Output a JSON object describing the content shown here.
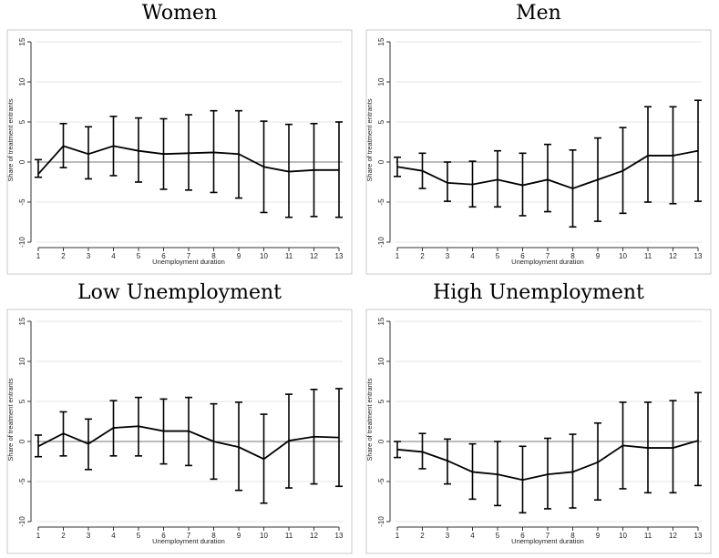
{
  "chart_data": [
    {
      "type": "line",
      "title": "Women",
      "xlabel": "Unemployment duration",
      "ylabel": "Share of treatment entrants",
      "ylim": [
        -10,
        15
      ],
      "yticks": [
        -10,
        -5,
        0,
        5,
        10,
        15
      ],
      "xticks": [
        1,
        2,
        3,
        4,
        5,
        6,
        7,
        8,
        9,
        10,
        11,
        12,
        13
      ],
      "grid": true,
      "x": [
        1,
        2,
        3,
        4,
        5,
        6,
        7,
        8,
        9,
        10,
        11,
        12,
        13
      ],
      "series": [
        {
          "values": [
            -1.5,
            2.0,
            1.0,
            2.0,
            1.4,
            1.0,
            1.1,
            1.2,
            1.0,
            -0.6,
            -1.2,
            -1.0,
            -1.0
          ],
          "ci_upper": [
            0.3,
            4.8,
            4.4,
            5.7,
            5.5,
            5.4,
            5.9,
            6.4,
            6.4,
            5.1,
            4.7,
            4.8,
            5.0
          ],
          "ci_lower": [
            -1.9,
            -0.7,
            -2.1,
            -1.7,
            -2.5,
            -3.4,
            -3.5,
            -3.8,
            -4.5,
            -6.3,
            -6.9,
            -6.8,
            -6.9
          ]
        }
      ]
    },
    {
      "type": "line",
      "title": "Men",
      "xlabel": "Unemployment duration",
      "ylabel": "Share of treatment entrants",
      "ylim": [
        -10,
        15
      ],
      "yticks": [
        -10,
        -5,
        0,
        5,
        10,
        15
      ],
      "xticks": [
        1,
        2,
        3,
        4,
        5,
        6,
        7,
        8,
        9,
        10,
        11,
        12,
        13
      ],
      "grid": true,
      "x": [
        1,
        2,
        3,
        4,
        5,
        6,
        7,
        8,
        9,
        10,
        11,
        12,
        13
      ],
      "series": [
        {
          "values": [
            -0.6,
            -1.1,
            -2.6,
            -2.8,
            -2.2,
            -2.9,
            -2.2,
            -3.3,
            -2.2,
            -1.1,
            0.8,
            0.8,
            1.4
          ],
          "ci_upper": [
            0.6,
            1.1,
            0.0,
            0.1,
            1.4,
            1.1,
            2.2,
            1.5,
            3.0,
            4.3,
            6.9,
            6.9,
            7.7
          ],
          "ci_lower": [
            -1.8,
            -3.3,
            -4.9,
            -5.6,
            -5.6,
            -6.7,
            -6.2,
            -8.1,
            -7.4,
            -6.4,
            -5.0,
            -5.2,
            -4.9
          ]
        }
      ]
    },
    {
      "type": "line",
      "title": "Low Unemployment",
      "xlabel": "Unemployment duration",
      "ylabel": "Share of treatment entrants",
      "ylim": [
        -10,
        15
      ],
      "yticks": [
        -10,
        -5,
        0,
        5,
        10,
        15
      ],
      "xticks": [
        1,
        2,
        3,
        4,
        5,
        6,
        7,
        8,
        9,
        10,
        11,
        12,
        13
      ],
      "grid": true,
      "x": [
        1,
        2,
        3,
        4,
        5,
        6,
        7,
        8,
        9,
        10,
        11,
        12,
        13
      ],
      "series": [
        {
          "values": [
            -0.6,
            1.0,
            -0.3,
            1.7,
            1.9,
            1.3,
            1.3,
            0.0,
            -0.7,
            -2.2,
            0.1,
            0.6,
            0.5
          ],
          "ci_upper": [
            0.8,
            3.7,
            2.8,
            5.1,
            5.5,
            5.3,
            5.5,
            4.7,
            4.9,
            3.4,
            5.9,
            6.5,
            6.6
          ],
          "ci_lower": [
            -1.9,
            -1.8,
            -3.5,
            -1.8,
            -1.8,
            -2.8,
            -3.0,
            -4.7,
            -6.1,
            -7.7,
            -5.8,
            -5.3,
            -5.6
          ]
        }
      ]
    },
    {
      "type": "line",
      "title": "High Unemployment",
      "xlabel": "Unemployment duration",
      "ylabel": "Share of treatment entrants",
      "ylim": [
        -10,
        15
      ],
      "yticks": [
        -10,
        -5,
        0,
        5,
        10,
        15
      ],
      "xticks": [
        1,
        2,
        3,
        4,
        5,
        6,
        7,
        8,
        9,
        10,
        11,
        12,
        13
      ],
      "grid": true,
      "x": [
        1,
        2,
        3,
        4,
        5,
        6,
        7,
        8,
        9,
        10,
        11,
        12,
        13
      ],
      "series": [
        {
          "values": [
            -1.0,
            -1.3,
            -2.4,
            -3.8,
            -4.1,
            -4.8,
            -4.1,
            -3.8,
            -2.6,
            -0.5,
            -0.8,
            -0.8,
            0.1
          ],
          "ci_upper": [
            0.0,
            1.0,
            0.3,
            -0.3,
            0.0,
            -0.6,
            0.4,
            0.9,
            2.3,
            4.9,
            4.9,
            5.1,
            6.1
          ],
          "ci_lower": [
            -2.0,
            -3.4,
            -5.3,
            -7.2,
            -8.0,
            -8.9,
            -8.4,
            -8.3,
            -7.3,
            -5.9,
            -6.4,
            -6.4,
            -5.5
          ]
        }
      ]
    }
  ]
}
